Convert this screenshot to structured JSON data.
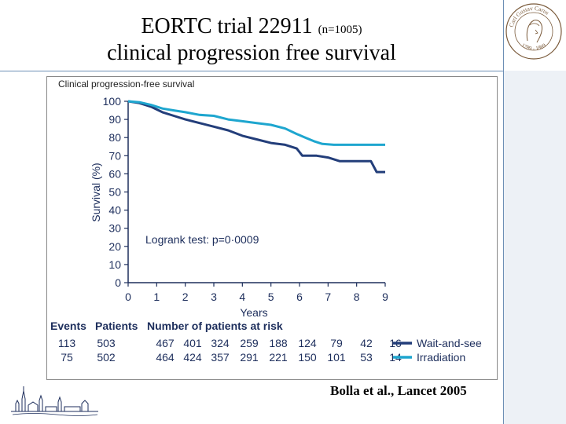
{
  "slide": {
    "title_line1": "EORTC trial 22911",
    "title_n": "(n=1005)",
    "title_line2": "clinical progression free survival",
    "citation": "Bolla et al., Lancet 2005",
    "seal_text": "Carl Gustav Carus 1789 - 1869"
  },
  "colors": {
    "wait_and_see": "#233e7a",
    "irradiation": "#1ea6cf",
    "text": "#1d2e5c",
    "accent_line": "#6d8fb5"
  },
  "chart_data": {
    "type": "line",
    "title": "Clinical progression-free survival",
    "xlabel": "Years",
    "ylabel": "Survival (%)",
    "xlim": [
      0,
      9
    ],
    "ylim": [
      0,
      100
    ],
    "xticks": [
      0,
      1,
      2,
      3,
      4,
      5,
      6,
      7,
      8,
      9
    ],
    "yticks": [
      0,
      10,
      20,
      30,
      40,
      50,
      60,
      70,
      80,
      90,
      100
    ],
    "annotation": "Logrank test: p=0·0009",
    "series": [
      {
        "name": "Wait-and-see",
        "color": "#233e7a",
        "points": [
          [
            0,
            100
          ],
          [
            0.4,
            99
          ],
          [
            0.8,
            97
          ],
          [
            1.2,
            94
          ],
          [
            1.6,
            92
          ],
          [
            2,
            90
          ],
          [
            2.5,
            88
          ],
          [
            3,
            86
          ],
          [
            3.5,
            84
          ],
          [
            4,
            81
          ],
          [
            4.5,
            79
          ],
          [
            5,
            77
          ],
          [
            5.5,
            76
          ],
          [
            5.9,
            74
          ],
          [
            6.1,
            70
          ],
          [
            6.6,
            70
          ],
          [
            7,
            69
          ],
          [
            7.4,
            67
          ],
          [
            8.5,
            67
          ],
          [
            8.7,
            61
          ],
          [
            9,
            61
          ]
        ]
      },
      {
        "name": "Irradiation",
        "color": "#1ea6cf",
        "points": [
          [
            0,
            100
          ],
          [
            0.4,
            99.5
          ],
          [
            0.8,
            98
          ],
          [
            1.2,
            96
          ],
          [
            1.6,
            95
          ],
          [
            2,
            94
          ],
          [
            2.5,
            92.5
          ],
          [
            3,
            92
          ],
          [
            3.5,
            90
          ],
          [
            4,
            89
          ],
          [
            4.5,
            88
          ],
          [
            5,
            87
          ],
          [
            5.5,
            85
          ],
          [
            5.9,
            82
          ],
          [
            6.2,
            80
          ],
          [
            6.5,
            78
          ],
          [
            6.8,
            76.5
          ],
          [
            7.2,
            76
          ],
          [
            9,
            76
          ]
        ]
      }
    ],
    "risk_table": {
      "header_events": "Events",
      "header_patients": "Patients",
      "header_risk": "Number of patients at risk",
      "rows": [
        {
          "events": "113",
          "patients": "503",
          "at_risk": [
            "467",
            "401",
            "324",
            "259",
            "188",
            "124",
            "79",
            "42",
            "16"
          ],
          "label": "Wait-and-see"
        },
        {
          "events": "75",
          "patients": "502",
          "at_risk": [
            "464",
            "424",
            "357",
            "291",
            "221",
            "150",
            "101",
            "53",
            "14"
          ],
          "label": "Irradiation"
        }
      ]
    }
  }
}
